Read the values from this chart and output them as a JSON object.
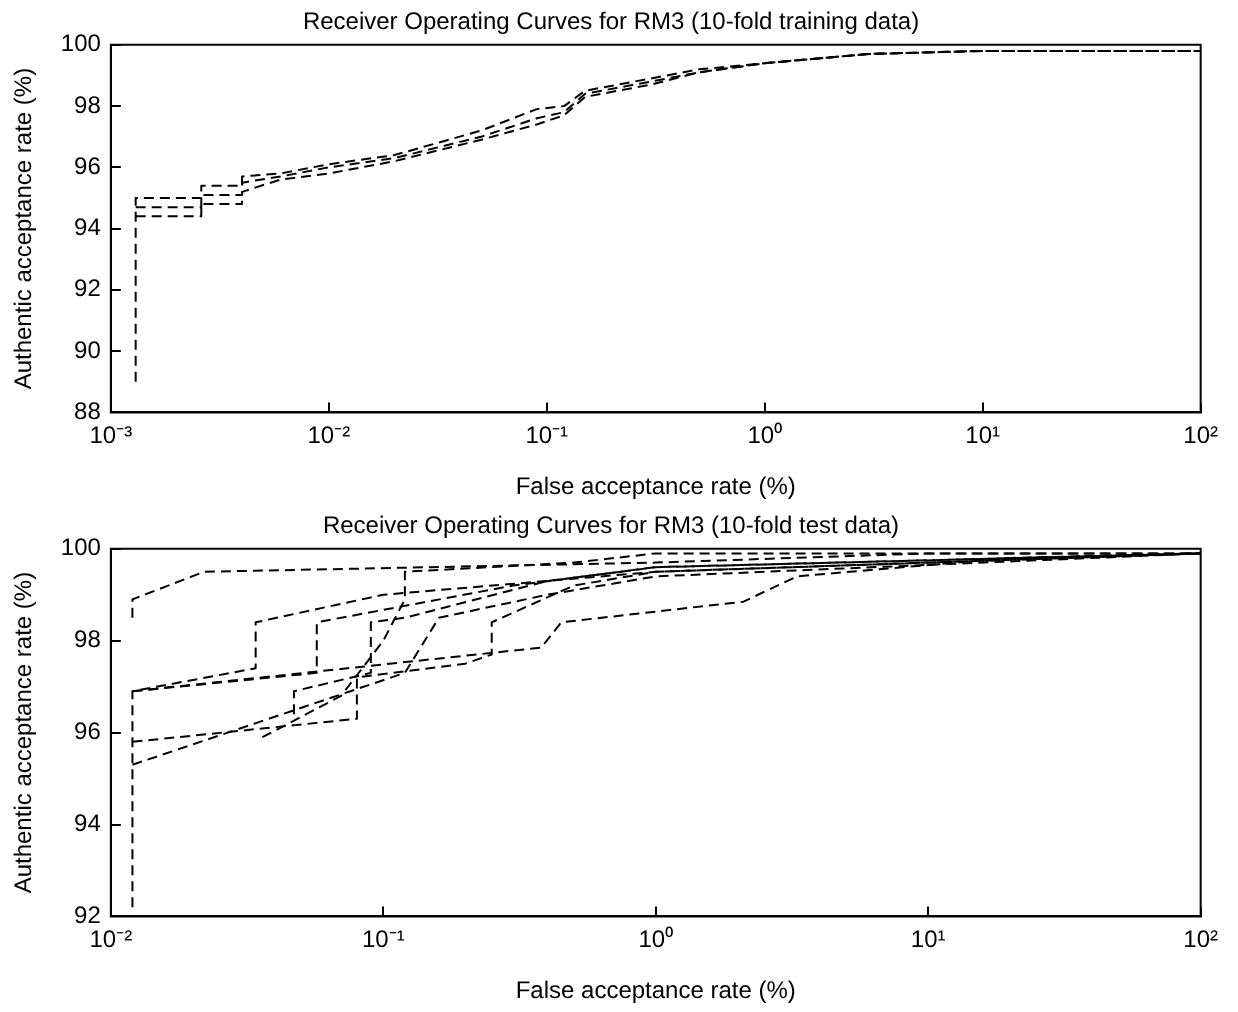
{
  "chart_data": [
    {
      "type": "line",
      "title": "Receiver Operating Curves for RM3 (10-fold training data)",
      "xlabel": "False acceptance rate (%)",
      "ylabel": "Authentic acceptance rate (%)",
      "log": "x",
      "grid": false,
      "legend": false,
      "marker": "none",
      "line_style": "dashed",
      "xlim": [
        0.001,
        100
      ],
      "xticks": [
        {
          "value": 0.001,
          "label": "10⁻³"
        },
        {
          "value": 0.01,
          "label": "10⁻²"
        },
        {
          "value": 0.1,
          "label": "10⁻¹"
        },
        {
          "value": 1,
          "label": "10⁰"
        },
        {
          "value": 10,
          "label": "10¹"
        },
        {
          "value": 100,
          "label": "10²"
        }
      ],
      "ylim": [
        88,
        100
      ],
      "yticks": [
        88,
        90,
        92,
        94,
        96,
        98,
        100
      ],
      "series": [
        {
          "color": "#000000",
          "x": [
            0.0013,
            0.0013,
            0.0026,
            0.0026,
            0.004,
            0.004,
            0.006,
            0.01,
            0.02,
            0.05,
            0.09,
            0.12,
            0.15,
            0.3,
            0.5,
            1,
            3,
            10,
            100
          ],
          "values": [
            89,
            95,
            95,
            95.4,
            95.4,
            95.7,
            95.8,
            96.1,
            96.4,
            97.2,
            97.9,
            98,
            98.5,
            98.9,
            99.2,
            99.4,
            99.7,
            99.8,
            99.8
          ]
        },
        {
          "color": "#000000",
          "x": [
            0.0013,
            0.0013,
            0.0026,
            0.0026,
            0.004,
            0.004,
            0.006,
            0.01,
            0.02,
            0.05,
            0.09,
            0.12,
            0.15,
            0.3,
            0.5,
            1,
            3,
            10,
            100
          ],
          "values": [
            94.4,
            94.4,
            94.4,
            94.8,
            94.8,
            95.2,
            95.6,
            95.8,
            96.2,
            96.9,
            97.4,
            97.7,
            98.3,
            98.7,
            99.1,
            99.4,
            99.7,
            99.8,
            99.8
          ]
        },
        {
          "color": "#000000",
          "x": [
            0.0013,
            0.0013,
            0.0026,
            0.0026,
            0.004,
            0.004,
            0.006,
            0.01,
            0.02,
            0.05,
            0.09,
            0.12,
            0.15,
            0.3,
            0.5,
            1,
            3,
            10,
            100
          ],
          "values": [
            94.7,
            94.7,
            94.7,
            95.1,
            95.1,
            95.5,
            95.7,
            96,
            96.3,
            97,
            97.6,
            97.8,
            98.4,
            98.8,
            99.1,
            99.4,
            99.7,
            99.8,
            99.8
          ]
        }
      ]
    },
    {
      "type": "line",
      "title": "Receiver Operating Curves for RM3 (10-fold test data)",
      "xlabel": "False acceptance rate (%)",
      "ylabel": "Authentic acceptance rate (%)",
      "log": "x",
      "grid": false,
      "legend": false,
      "marker": "none",
      "line_style": "dashed",
      "xlim": [
        0.01,
        100
      ],
      "xticks": [
        {
          "value": 0.01,
          "label": "10⁻²"
        },
        {
          "value": 0.1,
          "label": "10⁻¹"
        },
        {
          "value": 1,
          "label": "10⁰"
        },
        {
          "value": 10,
          "label": "10¹"
        },
        {
          "value": 100,
          "label": "10²"
        }
      ],
      "ylim": [
        92,
        100
      ],
      "yticks": [
        92,
        94,
        96,
        98,
        100
      ],
      "series": [
        {
          "color": "#000000",
          "x": [
            0.012,
            0.012,
            0.022,
            1,
            10,
            100
          ],
          "values": [
            98.5,
            98.9,
            99.5,
            99.7,
            99.9,
            99.9
          ]
        },
        {
          "color": "#000000",
          "x": [
            0.012,
            0.012,
            0.034,
            0.034,
            0.1,
            1,
            100
          ],
          "values": [
            92.2,
            96.9,
            97.4,
            98.4,
            99,
            99.5,
            99.9
          ]
        },
        {
          "color": "#000000",
          "x": [
            0.012,
            0.057,
            0.057,
            0.3,
            1,
            100
          ],
          "values": [
            96.9,
            97.3,
            98.4,
            99.2,
            99.6,
            99.9
          ]
        },
        {
          "color": "#000000",
          "x": [
            0.012,
            0.38,
            0.45,
            2.1,
            3.3,
            20,
            100
          ],
          "values": [
            96.9,
            97.85,
            98.4,
            98.85,
            99.4,
            99.8,
            99.9
          ]
        },
        {
          "color": "#000000",
          "x": [
            0.012,
            0.012,
            0.12,
            0.16,
            0.4,
            1,
            100
          ],
          "values": [
            95.3,
            95.3,
            97.3,
            98.5,
            99,
            99.4,
            99.9
          ]
        },
        {
          "color": "#000000",
          "x": [
            0.012,
            0.08,
            0.08,
            0.2,
            0.25,
            0.25,
            0.5,
            1,
            100
          ],
          "values": [
            95.8,
            96.3,
            97.2,
            97.5,
            97.7,
            98.4,
            99.2,
            99.5,
            99.9
          ]
        },
        {
          "color": "#000000",
          "x": [
            0.036,
            0.07,
            0.1,
            0.12,
            0.12,
            0.5,
            1,
            100
          ],
          "values": [
            95.9,
            96.8,
            98,
            98.9,
            99.5,
            99.7,
            99.9,
            99.9
          ]
        },
        {
          "color": "#000000",
          "x": [
            0.047,
            0.047,
            0.09,
            0.09,
            0.12,
            0.4,
            1,
            100
          ],
          "values": [
            96.4,
            96.9,
            97.3,
            98.4,
            98.5,
            99.3,
            99.6,
            99.9
          ]
        }
      ]
    }
  ]
}
